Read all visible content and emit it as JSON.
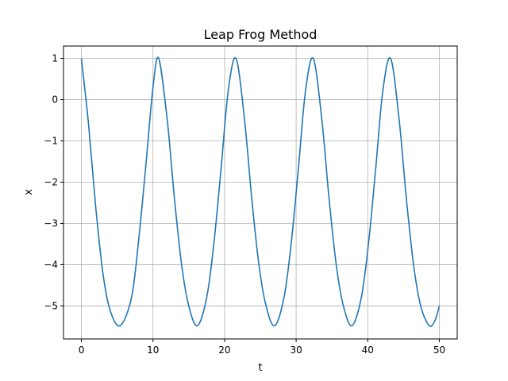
{
  "chart_data": {
    "type": "line",
    "title": "Leap Frog Method",
    "xlabel": "t",
    "ylabel": "x",
    "xlim": [
      -2.5,
      52.5
    ],
    "ylim": [
      -5.8,
      1.3
    ],
    "xticks": [
      0,
      10,
      20,
      30,
      40,
      50
    ],
    "xtick_labels": [
      "0",
      "10",
      "20",
      "30",
      "40",
      "50"
    ],
    "yticks": [
      1,
      0,
      -1,
      -2,
      -3,
      -4,
      -5
    ],
    "ytick_labels": [
      "1",
      "0",
      "−1",
      "−2",
      "−3",
      "−4",
      "−5"
    ],
    "grid": true,
    "series": [
      {
        "color": "#1f77b4",
        "x": [
          0,
          1,
          2,
          3,
          4,
          5.4,
          7,
          8,
          9,
          10,
          10.8,
          12,
          13,
          14,
          15,
          16.2,
          17.5,
          18.5,
          19.5,
          20.5,
          21.6,
          22.8,
          23.8,
          24.8,
          25.8,
          27.0,
          28.3,
          29.3,
          30.3,
          31.3,
          32.4,
          33.6,
          34.6,
          35.6,
          36.6,
          37.8,
          39.1,
          40.1,
          41.1,
          42.1,
          43.2,
          44.4,
          45.4,
          46.4,
          47.4,
          48.6,
          49.4,
          50
        ],
        "y": [
          1.0,
          -0.6,
          -2.6,
          -4.2,
          -5.1,
          -5.48,
          -4.8,
          -3.4,
          -1.6,
          0.3,
          1.0,
          -0.5,
          -2.4,
          -4.0,
          -5.0,
          -5.48,
          -4.8,
          -3.5,
          -1.7,
          0.2,
          1.0,
          -0.5,
          -2.4,
          -4.0,
          -5.0,
          -5.48,
          -4.8,
          -3.5,
          -1.7,
          0.2,
          1.0,
          -0.5,
          -2.4,
          -4.0,
          -5.0,
          -5.48,
          -4.8,
          -3.5,
          -1.7,
          0.2,
          1.0,
          -0.5,
          -2.4,
          -4.0,
          -5.0,
          -5.48,
          -5.35,
          -5.0
        ]
      }
    ]
  }
}
